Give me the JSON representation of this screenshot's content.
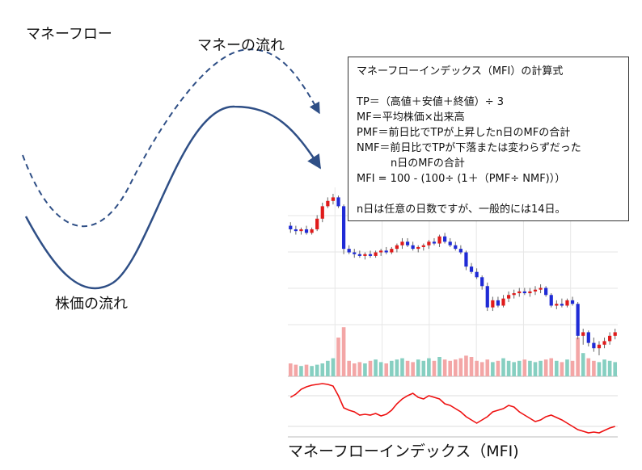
{
  "labels": {
    "main_title": "マネーフロー",
    "money_flow": "マネーの流れ",
    "price_flow": "株価の流れ",
    "mfi_title": "マネーフローインデックス（MFI)"
  },
  "formula": {
    "title": "マネーフローインデックス（MFI）の計算式",
    "tp": "TP＝（高値＋安値＋終値）÷ 3",
    "mf": "MF＝平均株価×出来高",
    "pmf": "PMF＝前日比でTPが上昇したn日のMFの合計",
    "nmf_1": "NMF＝前日比でTPが下落または変わらずだった",
    "nmf_2": "n日のMFの合計",
    "mfi": "MFI = 100 - (100÷ (1＋（PMF÷ NMF)））",
    "note": "n日は任意の日数ですが、一般的には14日。"
  },
  "colors": {
    "curve": "#2f4f86",
    "bull": "#e01b1b",
    "bear": "#1f2bd6",
    "volume_up": "#86cfc1",
    "volume_down": "#f3a6a6",
    "mfi_line": "#ee1111",
    "grid": "#e6e6e6"
  },
  "chart_data": {
    "type": "candlestick",
    "candles_ohlc": [
      [
        60,
        62,
        56,
        58
      ],
      [
        58,
        60,
        55,
        57
      ],
      [
        57,
        59,
        55,
        58
      ],
      [
        58,
        60,
        55,
        56
      ],
      [
        56,
        59,
        55,
        58
      ],
      [
        58,
        66,
        57,
        64
      ],
      [
        64,
        73,
        62,
        71
      ],
      [
        71,
        76,
        70,
        74
      ],
      [
        74,
        78,
        72,
        76
      ],
      [
        76,
        77,
        70,
        71
      ],
      [
        71,
        72,
        44,
        47
      ],
      [
        47,
        49,
        44,
        45
      ],
      [
        45,
        47,
        42,
        44
      ],
      [
        44,
        46,
        42,
        43
      ],
      [
        43,
        45,
        41,
        44
      ],
      [
        44,
        46,
        42,
        43
      ],
      [
        43,
        46,
        42,
        45
      ],
      [
        45,
        47,
        43,
        46
      ],
      [
        46,
        48,
        44,
        45
      ],
      [
        45,
        48,
        44,
        47
      ],
      [
        47,
        50,
        45,
        49
      ],
      [
        49,
        53,
        47,
        51
      ],
      [
        51,
        53,
        48,
        49
      ],
      [
        49,
        51,
        46,
        47
      ],
      [
        47,
        49,
        45,
        48
      ],
      [
        48,
        50,
        46,
        49
      ],
      [
        49,
        52,
        47,
        51
      ],
      [
        51,
        53,
        49,
        50
      ],
      [
        50,
        55,
        48,
        54
      ],
      [
        54,
        56,
        50,
        51
      ],
      [
        51,
        53,
        48,
        49
      ],
      [
        49,
        51,
        46,
        47
      ],
      [
        47,
        49,
        44,
        45
      ],
      [
        45,
        46,
        35,
        37
      ],
      [
        37,
        39,
        33,
        34
      ],
      [
        34,
        36,
        30,
        31
      ],
      [
        31,
        32,
        24,
        26
      ],
      [
        26,
        28,
        12,
        14
      ],
      [
        14,
        20,
        12,
        18
      ],
      [
        18,
        20,
        14,
        15
      ],
      [
        15,
        21,
        14,
        19
      ],
      [
        19,
        23,
        17,
        21
      ],
      [
        21,
        24,
        19,
        22
      ],
      [
        22,
        25,
        20,
        23
      ],
      [
        23,
        25,
        21,
        22
      ],
      [
        22,
        25,
        20,
        23
      ],
      [
        23,
        26,
        21,
        24
      ],
      [
        24,
        27,
        22,
        25
      ],
      [
        25,
        26,
        20,
        21
      ],
      [
        21,
        22,
        14,
        15
      ],
      [
        15,
        18,
        13,
        16
      ],
      [
        16,
        19,
        14,
        15
      ],
      [
        15,
        19,
        14,
        18
      ],
      [
        18,
        20,
        15,
        16
      ],
      [
        16,
        17,
        -4,
        -2
      ],
      [
        -2,
        2,
        -7,
        0
      ],
      [
        0,
        1,
        -8,
        -6
      ],
      [
        -6,
        -3,
        -11,
        -9
      ],
      [
        -9,
        -5,
        -13,
        -7
      ],
      [
        -7,
        -3,
        -9,
        -5
      ],
      [
        -5,
        0,
        -7,
        -2
      ],
      [
        -2,
        2,
        -4,
        0
      ]
    ],
    "volume": [
      10,
      9,
      8,
      9,
      8,
      9,
      10,
      12,
      14,
      30,
      38,
      12,
      10,
      11,
      10,
      12,
      13,
      11,
      10,
      12,
      13,
      14,
      12,
      11,
      13,
      12,
      14,
      12,
      15,
      13,
      12,
      13,
      14,
      16,
      15,
      12,
      11,
      13,
      11,
      12,
      14,
      12,
      11,
      12,
      13,
      12,
      11,
      12,
      13,
      14,
      12,
      11,
      13,
      12,
      30,
      18,
      14,
      12,
      11,
      13,
      12,
      11
    ],
    "mfi": [
      58,
      62,
      68,
      71,
      73,
      74,
      75,
      74,
      72,
      60,
      45,
      42,
      40,
      36,
      37,
      36,
      38,
      35,
      37,
      42,
      50,
      56,
      60,
      63,
      58,
      56,
      60,
      58,
      56,
      50,
      48,
      44,
      40,
      34,
      30,
      26,
      30,
      34,
      40,
      42,
      44,
      48,
      46,
      40,
      36,
      32,
      28,
      30,
      34,
      36,
      33,
      30,
      26,
      22,
      18,
      16,
      14,
      15,
      14,
      17,
      20,
      22
    ]
  }
}
